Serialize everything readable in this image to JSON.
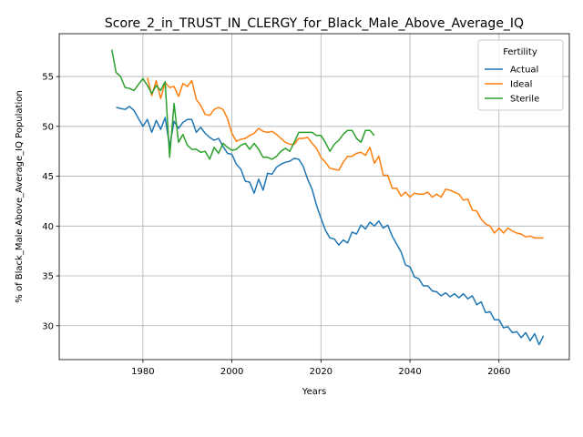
{
  "chart_data": {
    "type": "line",
    "title": "Score_2_in_TRUST_IN_CLERGY_for_Black_Male_Above_Average_IQ",
    "xlabel": "Years",
    "ylabel": "% of Black_Male Above_Average_IQ Population",
    "xlim": [
      1961.2,
      2075.8
    ],
    "ylim": [
      26.6,
      59.3
    ],
    "xticks": [
      1980,
      2000,
      2020,
      2040,
      2060
    ],
    "yticks": [
      30,
      35,
      40,
      45,
      50,
      55
    ],
    "grid": true,
    "legend": {
      "title": "Fertility",
      "position": "top-right"
    },
    "series": [
      {
        "name": "Actual",
        "color": "#1f77b4",
        "points": [
          [
            1974,
            51.9
          ],
          [
            1975,
            51.8
          ],
          [
            1976,
            51.7
          ],
          [
            1977,
            52.0
          ],
          [
            1978,
            51.6
          ],
          [
            1979,
            50.8
          ],
          [
            1980,
            50.0
          ],
          [
            1981,
            50.7
          ],
          [
            1982,
            49.4
          ],
          [
            1983,
            50.6
          ],
          [
            1984,
            49.7
          ],
          [
            1985,
            50.9
          ],
          [
            1986,
            48.0
          ],
          [
            1987,
            50.5
          ],
          [
            1988,
            49.8
          ],
          [
            1989,
            50.4
          ],
          [
            1990,
            50.7
          ],
          [
            1991,
            50.7
          ],
          [
            1992,
            49.4
          ],
          [
            1993,
            49.9
          ],
          [
            1994,
            49.3
          ],
          [
            1995,
            48.9
          ],
          [
            1996,
            48.6
          ],
          [
            1997,
            48.8
          ],
          [
            1998,
            48.0
          ],
          [
            1999,
            47.3
          ],
          [
            2000,
            47.2
          ],
          [
            2001,
            46.2
          ],
          [
            2002,
            45.7
          ],
          [
            2003,
            44.5
          ],
          [
            2004,
            44.4
          ],
          [
            2005,
            43.3
          ],
          [
            2006,
            44.7
          ],
          [
            2007,
            43.6
          ],
          [
            2008,
            45.3
          ],
          [
            2009,
            45.2
          ],
          [
            2010,
            45.9
          ],
          [
            2011,
            46.2
          ],
          [
            2012,
            46.4
          ],
          [
            2013,
            46.5
          ],
          [
            2014,
            46.8
          ],
          [
            2015,
            46.7
          ],
          [
            2016,
            46.0
          ],
          [
            2017,
            44.7
          ],
          [
            2018,
            43.7
          ],
          [
            2019,
            42.1
          ],
          [
            2020,
            40.8
          ],
          [
            2021,
            39.6
          ],
          [
            2022,
            38.8
          ],
          [
            2023,
            38.7
          ],
          [
            2024,
            38.1
          ],
          [
            2025,
            38.6
          ],
          [
            2026,
            38.3
          ],
          [
            2027,
            39.4
          ],
          [
            2028,
            39.2
          ],
          [
            2029,
            40.1
          ],
          [
            2030,
            39.7
          ],
          [
            2031,
            40.4
          ],
          [
            2032,
            40.0
          ],
          [
            2033,
            40.5
          ],
          [
            2034,
            39.8
          ],
          [
            2035,
            40.1
          ],
          [
            2036,
            39.0
          ],
          [
            2037,
            38.2
          ],
          [
            2038,
            37.4
          ],
          [
            2039,
            36.1
          ],
          [
            2040,
            35.9
          ],
          [
            2041,
            34.9
          ],
          [
            2042,
            34.7
          ],
          [
            2043,
            34.0
          ],
          [
            2044,
            34.0
          ],
          [
            2045,
            33.5
          ],
          [
            2046,
            33.4
          ],
          [
            2047,
            33.0
          ],
          [
            2048,
            33.3
          ],
          [
            2049,
            32.9
          ],
          [
            2050,
            33.2
          ],
          [
            2051,
            32.8
          ],
          [
            2052,
            33.2
          ],
          [
            2053,
            32.7
          ],
          [
            2054,
            33.0
          ],
          [
            2055,
            32.1
          ],
          [
            2056,
            32.4
          ],
          [
            2057,
            31.3
          ],
          [
            2058,
            31.4
          ],
          [
            2059,
            30.6
          ],
          [
            2060,
            30.6
          ],
          [
            2061,
            29.8
          ],
          [
            2062,
            29.9
          ],
          [
            2063,
            29.3
          ],
          [
            2064,
            29.4
          ],
          [
            2065,
            28.8
          ],
          [
            2066,
            29.3
          ],
          [
            2067,
            28.5
          ],
          [
            2068,
            29.2
          ],
          [
            2069,
            28.1
          ],
          [
            2070,
            29.0
          ]
        ]
      },
      {
        "name": "Ideal",
        "color": "#ff7f0e",
        "points": [
          [
            1981,
            54.9
          ],
          [
            1982,
            53.1
          ],
          [
            1983,
            54.6
          ],
          [
            1984,
            52.8
          ],
          [
            1985,
            54.4
          ],
          [
            1986,
            53.9
          ],
          [
            1987,
            54.0
          ],
          [
            1988,
            53.0
          ],
          [
            1989,
            54.3
          ],
          [
            1990,
            54.0
          ],
          [
            1991,
            54.6
          ],
          [
            1992,
            52.7
          ],
          [
            1993,
            52.1
          ],
          [
            1994,
            51.2
          ],
          [
            1995,
            51.1
          ],
          [
            1996,
            51.7
          ],
          [
            1997,
            51.9
          ],
          [
            1998,
            51.7
          ],
          [
            1999,
            50.8
          ],
          [
            2000,
            49.3
          ],
          [
            2001,
            48.5
          ],
          [
            2002,
            48.7
          ],
          [
            2003,
            48.8
          ],
          [
            2004,
            49.1
          ],
          [
            2005,
            49.3
          ],
          [
            2006,
            49.8
          ],
          [
            2007,
            49.5
          ],
          [
            2008,
            49.4
          ],
          [
            2009,
            49.5
          ],
          [
            2010,
            49.2
          ],
          [
            2011,
            48.8
          ],
          [
            2012,
            48.4
          ],
          [
            2013,
            48.2
          ],
          [
            2014,
            48.2
          ],
          [
            2015,
            48.8
          ],
          [
            2016,
            48.8
          ],
          [
            2017,
            48.9
          ],
          [
            2018,
            48.3
          ],
          [
            2019,
            47.8
          ],
          [
            2020,
            46.9
          ],
          [
            2021,
            46.4
          ],
          [
            2022,
            45.8
          ],
          [
            2023,
            45.7
          ],
          [
            2024,
            45.6
          ],
          [
            2025,
            46.4
          ],
          [
            2026,
            47.0
          ],
          [
            2027,
            47.0
          ],
          [
            2028,
            47.3
          ],
          [
            2029,
            47.4
          ],
          [
            2030,
            47.1
          ],
          [
            2031,
            47.9
          ],
          [
            2032,
            46.3
          ],
          [
            2033,
            47.0
          ],
          [
            2034,
            45.1
          ],
          [
            2035,
            45.1
          ],
          [
            2036,
            43.8
          ],
          [
            2037,
            43.8
          ],
          [
            2038,
            43.0
          ],
          [
            2039,
            43.4
          ],
          [
            2040,
            42.9
          ],
          [
            2041,
            43.3
          ],
          [
            2042,
            43.2
          ],
          [
            2043,
            43.2
          ],
          [
            2044,
            43.4
          ],
          [
            2045,
            42.9
          ],
          [
            2046,
            43.2
          ],
          [
            2047,
            42.9
          ],
          [
            2048,
            43.7
          ],
          [
            2049,
            43.6
          ],
          [
            2050,
            43.4
          ],
          [
            2051,
            43.2
          ],
          [
            2052,
            42.6
          ],
          [
            2053,
            42.7
          ],
          [
            2054,
            41.6
          ],
          [
            2055,
            41.5
          ],
          [
            2056,
            40.7
          ],
          [
            2057,
            40.2
          ],
          [
            2058,
            40.0
          ],
          [
            2059,
            39.3
          ],
          [
            2060,
            39.8
          ],
          [
            2061,
            39.3
          ],
          [
            2062,
            39.8
          ],
          [
            2063,
            39.5
          ],
          [
            2064,
            39.3
          ],
          [
            2065,
            39.2
          ],
          [
            2066,
            38.9
          ],
          [
            2067,
            39.0
          ],
          [
            2068,
            38.8
          ],
          [
            2069,
            38.8
          ],
          [
            2070,
            38.8
          ]
        ]
      },
      {
        "name": "Sterile",
        "color": "#2ca02c",
        "points": [
          [
            1973,
            57.7
          ],
          [
            1974,
            55.4
          ],
          [
            1975,
            55.0
          ],
          [
            1976,
            53.9
          ],
          [
            1977,
            53.8
          ],
          [
            1978,
            53.6
          ],
          [
            1979,
            54.2
          ],
          [
            1980,
            54.8
          ],
          [
            1981,
            54.1
          ],
          [
            1982,
            53.3
          ],
          [
            1983,
            54.1
          ],
          [
            1984,
            53.6
          ],
          [
            1985,
            54.5
          ],
          [
            1986,
            46.9
          ],
          [
            1987,
            52.3
          ],
          [
            1988,
            48.4
          ],
          [
            1989,
            49.2
          ],
          [
            1990,
            48.1
          ],
          [
            1991,
            47.7
          ],
          [
            1992,
            47.7
          ],
          [
            1993,
            47.4
          ],
          [
            1994,
            47.5
          ],
          [
            1995,
            46.7
          ],
          [
            1996,
            47.9
          ],
          [
            1997,
            47.3
          ],
          [
            1998,
            48.3
          ],
          [
            1999,
            47.9
          ],
          [
            2000,
            47.6
          ],
          [
            2001,
            47.7
          ],
          [
            2002,
            48.1
          ],
          [
            2003,
            48.3
          ],
          [
            2004,
            47.7
          ],
          [
            2005,
            48.3
          ],
          [
            2006,
            47.7
          ],
          [
            2007,
            46.9
          ],
          [
            2008,
            46.9
          ],
          [
            2009,
            46.7
          ],
          [
            2010,
            47.0
          ],
          [
            2011,
            47.5
          ],
          [
            2012,
            47.8
          ],
          [
            2013,
            47.5
          ],
          [
            2014,
            48.4
          ],
          [
            2015,
            49.4
          ],
          [
            2016,
            49.4
          ],
          [
            2017,
            49.4
          ],
          [
            2018,
            49.4
          ],
          [
            2019,
            49.1
          ],
          [
            2020,
            49.1
          ],
          [
            2021,
            48.4
          ],
          [
            2022,
            47.5
          ],
          [
            2023,
            48.2
          ],
          [
            2024,
            48.6
          ],
          [
            2025,
            49.2
          ],
          [
            2026,
            49.6
          ],
          [
            2027,
            49.6
          ],
          [
            2028,
            48.8
          ],
          [
            2029,
            48.4
          ],
          [
            2030,
            49.6
          ],
          [
            2031,
            49.6
          ],
          [
            2032,
            49.1
          ]
        ]
      }
    ]
  }
}
